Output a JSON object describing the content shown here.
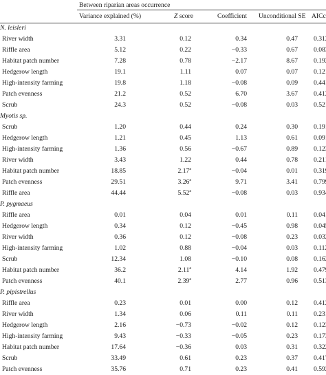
{
  "header": {
    "group_label": "Between riparian areas occurrence",
    "columns": [
      "Variance explained (%)",
      "Z",
      "score",
      "Coefficient",
      "Unconditional SE",
      "AICc"
    ]
  },
  "groups": [
    {
      "species": "N. leisleri",
      "rows": [
        {
          "variable": "River width",
          "variance": "3.31",
          "z": "0.12",
          "sup": "",
          "coef": "0.34",
          "se": "0.47",
          "aic": "0.312"
        },
        {
          "variable": "Riffle area",
          "variance": "5.12",
          "z": "0.22",
          "sup": "",
          "coef": "−0.33",
          "se": "0.67",
          "aic": "0.083"
        },
        {
          "variable": "Habitat patch number",
          "variance": "7.28",
          "z": "0.78",
          "sup": "",
          "coef": "−2.17",
          "se": "8.67",
          "aic": "0.192"
        },
        {
          "variable": "Hedgerow length",
          "variance": "19.1",
          "z": "1.11",
          "sup": "",
          "coef": "0.07",
          "se": "0.07",
          "aic": "0.121"
        },
        {
          "variable": "High-intensity farming",
          "variance": "19.8",
          "z": "1.18",
          "sup": "",
          "coef": "−0.08",
          "se": "0.09",
          "aic": "0.441"
        },
        {
          "variable": "Patch evenness",
          "variance": "21.2",
          "z": "0.52",
          "sup": "",
          "coef": "6.70",
          "se": "3.67",
          "aic": "0.412"
        },
        {
          "variable": "Scrub",
          "variance": "24.3",
          "z": "0.52",
          "sup": "",
          "coef": "−0.08",
          "se": "0.03",
          "aic": "0.521"
        }
      ]
    },
    {
      "species": "Myotis sp.",
      "rows": [
        {
          "variable": "Scrub",
          "variance": "1.20",
          "z": "0.44",
          "sup": "",
          "coef": "0.24",
          "se": "0.30",
          "aic": "0.191"
        },
        {
          "variable": "Hedgerow length",
          "variance": "1.21",
          "z": "0.45",
          "sup": "",
          "coef": "1.13",
          "se": "0.61",
          "aic": "0.091"
        },
        {
          "variable": "High-intensity farming",
          "variance": "1.36",
          "z": "0.56",
          "sup": "",
          "coef": "−0.67",
          "se": "0.89",
          "aic": "0.123"
        },
        {
          "variable": "River width",
          "variance": "3.43",
          "z": "1.22",
          "sup": "",
          "coef": "0.44",
          "se": "0.78",
          "aic": "0.211"
        },
        {
          "variable": "Habitat patch number",
          "variance": "18.85",
          "z": "2.17",
          "sup": "a",
          "coef": "−0.04",
          "se": "0.01",
          "aic": "0.319"
        },
        {
          "variable": "Patch evenness",
          "variance": "29.51",
          "z": "3.26",
          "sup": "a",
          "coef": "9.71",
          "se": "3.41",
          "aic": "0.799"
        },
        {
          "variable": "Riffle area",
          "variance": "44.44",
          "z": "5.52",
          "sup": "a",
          "coef": "−0.08",
          "se": "0.03",
          "aic": "0.934"
        }
      ]
    },
    {
      "species": "P. pygmaeus",
      "rows": [
        {
          "variable": "Riffle area",
          "variance": "0.01",
          "z": "0.04",
          "sup": "",
          "coef": "0.01",
          "se": "0.11",
          "aic": "0.041"
        },
        {
          "variable": "Hedgerow length",
          "variance": "0.34",
          "z": "0.12",
          "sup": "",
          "coef": "−0.45",
          "se": "0.98",
          "aic": "0.045"
        },
        {
          "variable": "River width",
          "variance": "0.36",
          "z": "0.12",
          "sup": "",
          "coef": "−0.08",
          "se": "0.23",
          "aic": "0.032"
        },
        {
          "variable": "High-intensity farming",
          "variance": "1.02",
          "z": "0.88",
          "sup": "",
          "coef": "−0.04",
          "se": "0.03",
          "aic": "0.112"
        },
        {
          "variable": "Scrub",
          "variance": "12.34",
          "z": "1.08",
          "sup": "",
          "coef": "−0.10",
          "se": "0.08",
          "aic": "0.162"
        },
        {
          "variable": "Habitat patch number",
          "variance": "36.2",
          "z": "2.11",
          "sup": "a",
          "coef": "4.14",
          "se": "1.92",
          "aic": "0.479"
        },
        {
          "variable": "Patch evenness",
          "variance": "40.1",
          "z": "2.39",
          "sup": "a",
          "coef": "2.77",
          "se": "0.96",
          "aic": "0.513"
        }
      ]
    },
    {
      "species": "P. pipistrellus",
      "rows": [
        {
          "variable": "Riffle area",
          "variance": "0.23",
          "z": "0.01",
          "sup": "",
          "coef": "0.00",
          "se": "0.12",
          "aic": "0.412"
        },
        {
          "variable": "River width",
          "variance": "1.34",
          "z": "0.06",
          "sup": "",
          "coef": "0.11",
          "se": "0.11",
          "aic": "0.231"
        },
        {
          "variable": "Hedgerow length",
          "variance": "2.16",
          "z": "−0.73",
          "sup": "",
          "coef": "−0.02",
          "se": "0.12",
          "aic": "0.123"
        },
        {
          "variable": "High-intensity farming",
          "variance": "9.43",
          "z": "−0.33",
          "sup": "",
          "coef": "−0.05",
          "se": "0.23",
          "aic": "0.173"
        },
        {
          "variable": "Habitat patch number",
          "variance": "17.64",
          "z": "−0.36",
          "sup": "",
          "coef": "0.03",
          "se": "0.31",
          "aic": "0.322"
        },
        {
          "variable": "Scrub",
          "variance": "33.49",
          "z": "0.61",
          "sup": "",
          "coef": "0.23",
          "se": "0.37",
          "aic": "0.417"
        },
        {
          "variable": "Patch evenness",
          "variance": "35.76",
          "z": "0.71",
          "sup": "",
          "coef": "0.23",
          "se": "0.41",
          "aic": "0.592"
        }
      ]
    }
  ]
}
